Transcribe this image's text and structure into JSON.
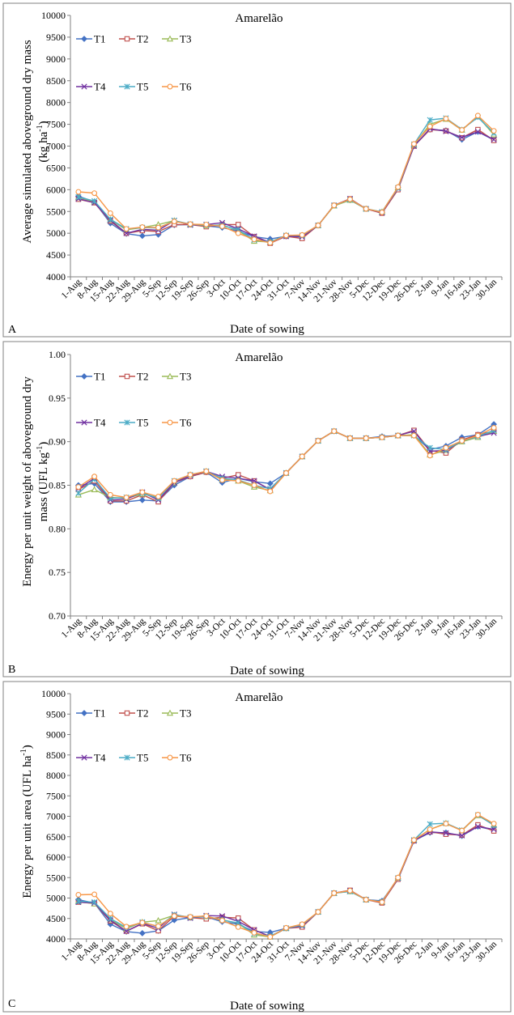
{
  "categories": [
    "1-Aug",
    "8-Aug",
    "15-Aug",
    "22-Aug",
    "29-Aug",
    "5-Sep",
    "12-Sep",
    "19-Sep",
    "26-Sep",
    "3-Oct",
    "10-Oct",
    "17-Oct",
    "24-Oct",
    "31-Oct",
    "7-Nov",
    "14-Nov",
    "21-Nov",
    "28-Nov",
    "5-Dec",
    "12-Dec",
    "19-Dec",
    "26-Dec",
    "2-Jan",
    "9-Jan",
    "16-Jan",
    "23-Jan",
    "30-Jan"
  ],
  "series_styles": [
    {
      "name": "T1",
      "color": "#4472C4",
      "marker": "diamond"
    },
    {
      "name": "T2",
      "color": "#C0504D",
      "marker": "square"
    },
    {
      "name": "T3",
      "color": "#9BBB59",
      "marker": "triangle"
    },
    {
      "name": "T4",
      "color": "#7030A0",
      "marker": "x"
    },
    {
      "name": "T5",
      "color": "#4BACC6",
      "marker": "star"
    },
    {
      "name": "T6",
      "color": "#F79646",
      "marker": "circle"
    }
  ],
  "chart_data": [
    {
      "type": "line",
      "panel": "A",
      "title": "Amarelão",
      "xlabel": "Date of sowing",
      "ylabel": "Average simulated aboveground dry mass",
      "ylabel_unit": "(kg ha",
      "ylabel_sup": "-1",
      "ylabel_close": ")",
      "ylim": [
        4000,
        10000
      ],
      "yticks": [
        "4000",
        "4500",
        "5000",
        "5500",
        "6000",
        "6500",
        "7000",
        "7500",
        "8000",
        "8500",
        "9000",
        "9500",
        "10000"
      ],
      "legend": "top-left",
      "series": [
        {
          "name": "T1",
          "values": [
            5850,
            5720,
            5230,
            4990,
            4940,
            4970,
            5190,
            5200,
            5170,
            5130,
            5050,
            4920,
            4870,
            4930,
            4950,
            5180,
            5640,
            5760,
            5560,
            5480,
            6050,
            7000,
            7380,
            7360,
            7150,
            7330,
            7140
          ]
        },
        {
          "name": "T2",
          "values": [
            5780,
            5700,
            5280,
            5000,
            5060,
            5040,
            5200,
            5200,
            5150,
            5200,
            5200,
            4920,
            4770,
            4930,
            4880,
            5180,
            5640,
            5790,
            5560,
            5460,
            6000,
            7000,
            7380,
            7350,
            7190,
            7380,
            7130
          ]
        },
        {
          "name": "T3",
          "values": [
            5820,
            5720,
            5310,
            5080,
            5130,
            5200,
            5290,
            5200,
            5180,
            5190,
            5060,
            4820,
            4800,
            4950,
            4950,
            5180,
            5630,
            5760,
            5560,
            5490,
            6050,
            7020,
            7500,
            7620,
            7370,
            7680,
            7260
          ]
        },
        {
          "name": "T4",
          "values": [
            5790,
            5700,
            5300,
            5000,
            5090,
            5070,
            5290,
            5190,
            5200,
            5240,
            5100,
            4930,
            4790,
            4930,
            4920,
            5180,
            5640,
            5790,
            5560,
            5470,
            6030,
            7000,
            7400,
            7340,
            7200,
            7330,
            7150
          ]
        },
        {
          "name": "T5",
          "values": [
            5830,
            5740,
            5320,
            5100,
            5130,
            5120,
            5290,
            5210,
            5190,
            5180,
            5080,
            4850,
            4800,
            4950,
            4950,
            5180,
            5640,
            5770,
            5560,
            5490,
            6040,
            7040,
            7600,
            7640,
            7380,
            7660,
            7300
          ]
        },
        {
          "name": "T6",
          "values": [
            5950,
            5920,
            5460,
            5100,
            5140,
            5130,
            5270,
            5210,
            5200,
            5160,
            5000,
            4860,
            4780,
            4950,
            4960,
            5180,
            5640,
            5780,
            5560,
            5480,
            6060,
            7050,
            7450,
            7630,
            7370,
            7700,
            7350
          ]
        }
      ]
    },
    {
      "type": "line",
      "panel": "B",
      "title": "Amarelão",
      "xlabel": "Date of sowing",
      "ylabel": "Energy per unit weight of aboveground dry",
      "ylabel2": "mass (UFL kg",
      "ylabel_sup": "-1",
      "ylabel_close": ")",
      "ylim": [
        0.7,
        1.0
      ],
      "yticks": [
        "0.70",
        "0.75",
        "0.80",
        "0.85",
        "0.90",
        "0.95",
        "1.00"
      ],
      "legend": "top-left",
      "series": [
        {
          "name": "T1",
          "values": [
            0.85,
            0.852,
            0.831,
            0.831,
            0.833,
            0.832,
            0.85,
            0.86,
            0.865,
            0.853,
            0.858,
            0.854,
            0.852,
            0.864,
            0.883,
            0.901,
            0.912,
            0.904,
            0.904,
            0.906,
            0.907,
            0.907,
            0.891,
            0.895,
            0.905,
            0.908,
            0.92
          ]
        },
        {
          "name": "T2",
          "values": [
            0.845,
            0.855,
            0.832,
            0.832,
            0.839,
            0.831,
            0.853,
            0.86,
            0.865,
            0.858,
            0.862,
            0.855,
            0.845,
            0.864,
            0.883,
            0.901,
            0.912,
            0.904,
            0.904,
            0.905,
            0.907,
            0.913,
            0.89,
            0.887,
            0.902,
            0.908,
            0.912
          ]
        },
        {
          "name": "T3",
          "values": [
            0.839,
            0.845,
            0.836,
            0.835,
            0.84,
            0.836,
            0.853,
            0.862,
            0.866,
            0.857,
            0.855,
            0.848,
            0.844,
            0.864,
            0.883,
            0.901,
            0.912,
            0.904,
            0.904,
            0.905,
            0.907,
            0.908,
            0.885,
            0.89,
            0.9,
            0.905,
            0.912
          ]
        },
        {
          "name": "T4",
          "values": [
            0.846,
            0.858,
            0.833,
            0.834,
            0.842,
            0.833,
            0.853,
            0.861,
            0.866,
            0.86,
            0.858,
            0.855,
            0.845,
            0.864,
            0.883,
            0.901,
            0.912,
            0.904,
            0.904,
            0.905,
            0.907,
            0.912,
            0.889,
            0.89,
            0.901,
            0.906,
            0.91
          ]
        },
        {
          "name": "T5",
          "values": [
            0.841,
            0.857,
            0.835,
            0.836,
            0.841,
            0.835,
            0.855,
            0.862,
            0.866,
            0.858,
            0.856,
            0.85,
            0.846,
            0.864,
            0.883,
            0.901,
            0.912,
            0.904,
            0.904,
            0.905,
            0.907,
            0.907,
            0.893,
            0.891,
            0.901,
            0.906,
            0.913
          ]
        },
        {
          "name": "T6",
          "values": [
            0.848,
            0.86,
            0.839,
            0.836,
            0.842,
            0.837,
            0.855,
            0.862,
            0.866,
            0.856,
            0.855,
            0.85,
            0.843,
            0.864,
            0.883,
            0.901,
            0.912,
            0.904,
            0.904,
            0.905,
            0.907,
            0.907,
            0.884,
            0.893,
            0.901,
            0.907,
            0.916
          ]
        }
      ]
    },
    {
      "type": "line",
      "panel": "C",
      "title": "Amarelão",
      "xlabel": "Date of sowing",
      "ylabel": "Energy per unit area",
      "ylabel_unit": "(UFL ha",
      "ylabel_sup": "-1",
      "ylabel_close": ")",
      "ylim": [
        4000,
        10000
      ],
      "yticks": [
        "4000",
        "4500",
        "5000",
        "5500",
        "6000",
        "6500",
        "7000",
        "7500",
        "8000",
        "8500",
        "9000",
        "9500",
        "10000"
      ],
      "legend": "top-left",
      "series": [
        {
          "name": "T1",
          "values": [
            4960,
            4880,
            4360,
            4180,
            4140,
            4200,
            4460,
            4520,
            4540,
            4420,
            4360,
            4180,
            4160,
            4260,
            4320,
            4660,
            5120,
            5170,
            4960,
            4930,
            5470,
            6400,
            6600,
            6600,
            6520,
            6750,
            6660
          ]
        },
        {
          "name": "T2",
          "values": [
            4900,
            4870,
            4440,
            4190,
            4370,
            4200,
            4560,
            4520,
            4490,
            4530,
            4510,
            4220,
            4060,
            4260,
            4290,
            4660,
            5120,
            5190,
            4960,
            4880,
            5460,
            6400,
            6620,
            6560,
            6540,
            6790,
            6640
          ]
        },
        {
          "name": "T3",
          "values": [
            4920,
            4860,
            4470,
            4250,
            4410,
            4450,
            4580,
            4530,
            4550,
            4470,
            4380,
            4100,
            4050,
            4260,
            4340,
            4660,
            5120,
            5160,
            4960,
            4900,
            5490,
            6420,
            6680,
            6830,
            6650,
            7020,
            6790
          ]
        },
        {
          "name": "T4",
          "values": [
            4900,
            4880,
            4460,
            4190,
            4380,
            4260,
            4600,
            4510,
            4570,
            4560,
            4430,
            4220,
            4060,
            4260,
            4320,
            4660,
            5120,
            5180,
            4960,
            4900,
            5480,
            6400,
            6620,
            6590,
            6530,
            6750,
            6680
          ]
        },
        {
          "name": "T5",
          "values": [
            4920,
            4900,
            4500,
            4280,
            4410,
            4300,
            4590,
            4530,
            4550,
            4460,
            4390,
            4130,
            4070,
            4260,
            4340,
            4660,
            5120,
            5160,
            4960,
            4910,
            5490,
            6420,
            6810,
            6830,
            6660,
            7030,
            6780
          ]
        },
        {
          "name": "T6",
          "values": [
            5080,
            5090,
            4620,
            4300,
            4400,
            4310,
            4560,
            4540,
            4560,
            4450,
            4290,
            4150,
            4050,
            4270,
            4360,
            4660,
            5120,
            5180,
            4960,
            4900,
            5500,
            6420,
            6680,
            6820,
            6650,
            7040,
            6820
          ]
        }
      ]
    }
  ]
}
